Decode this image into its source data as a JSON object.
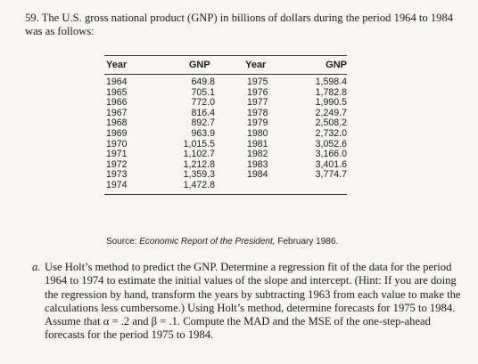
{
  "problem": {
    "number": "59.",
    "intro": "The U.S. gross national product (GNP) in billions of dollars during the period 1964 to 1984 was as follows:"
  },
  "table": {
    "headers": [
      "Year",
      "GNP",
      "Year",
      "GNP"
    ],
    "left": [
      {
        "year": "1964",
        "gnp": "649.8"
      },
      {
        "year": "1965",
        "gnp": "705.1"
      },
      {
        "year": "1966",
        "gnp": "772.0"
      },
      {
        "year": "1967",
        "gnp": "816.4"
      },
      {
        "year": "1968",
        "gnp": "892.7"
      },
      {
        "year": "1969",
        "gnp": "963.9"
      },
      {
        "year": "1970",
        "gnp": "1,015.5"
      },
      {
        "year": "1971",
        "gnp": "1,102.7"
      },
      {
        "year": "1972",
        "gnp": "1,212.8"
      },
      {
        "year": "1973",
        "gnp": "1,359.3"
      },
      {
        "year": "1974",
        "gnp": "1,472.8"
      }
    ],
    "right": [
      {
        "year": "1975",
        "gnp": "1,598.4"
      },
      {
        "year": "1976",
        "gnp": "1,782.8"
      },
      {
        "year": "1977",
        "gnp": "1,990.5"
      },
      {
        "year": "1978",
        "gnp": "2,249.7"
      },
      {
        "year": "1979",
        "gnp": "2,508.2"
      },
      {
        "year": "1980",
        "gnp": "2,732.0"
      },
      {
        "year": "1981",
        "gnp": "3,052.6"
      },
      {
        "year": "1982",
        "gnp": "3,166.0"
      },
      {
        "year": "1983",
        "gnp": "3,401.6"
      },
      {
        "year": "1984",
        "gnp": "3,774.7"
      }
    ]
  },
  "source": {
    "prefix": "Source: ",
    "title": "Economic Report of the President,",
    "suffix": " February 1986."
  },
  "part_a": {
    "label": "a.",
    "text": "Use Holt’s method to predict the GNP. Determine a regression fit of the data for the period 1964 to 1974 to estimate the initial values of the slope and intercept. (Hint: If you are doing the regression by hand, transform the years by subtracting 1963 from each value to make the calculations less cumbersome.) Using Holt’s method, determine forecasts for 1975 to 1984. Assume that α = .2 and β = .1. Compute the MAD and the MSE of the one-step-ahead forecasts for the period 1975 to 1984."
  }
}
